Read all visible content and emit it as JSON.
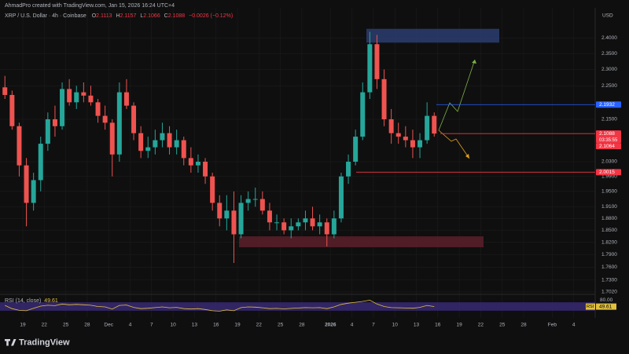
{
  "chart_data": {
    "type": "candlestick",
    "title": "AhmadPro created with TradingView.com, Jan 15, 2026 16:24 UTC+4",
    "symbol": "XRP / U.S. Dollar · 4h · Coinbase",
    "ohlc_labels": [
      "O",
      "H",
      "L",
      "C"
    ],
    "ohlc_values": [
      "2.1113",
      "2.1157",
      "2.1066",
      "2.1088"
    ],
    "change": "−0.0026 (−0.12%)",
    "currency": "USD",
    "brand": "TradingView",
    "log_scale": true,
    "up_color": "#26a69a",
    "down_color": "#ef5350",
    "ylim": [
      1.7,
      2.5
    ],
    "yticks": [
      {
        "value": 2.4,
        "label": "2.4000"
      },
      {
        "value": 2.35,
        "label": "2.3500"
      },
      {
        "value": 2.3,
        "label": "2.3000"
      },
      {
        "value": 2.25,
        "label": "2.2500"
      },
      {
        "value": 2.15,
        "label": "2.1500"
      },
      {
        "value": 2.03,
        "label": "2.0300"
      },
      {
        "value": 1.99,
        "label": "1.9900"
      },
      {
        "value": 1.95,
        "label": "1.9500"
      },
      {
        "value": 1.91,
        "label": "1.9100"
      },
      {
        "value": 1.88,
        "label": "1.8800"
      },
      {
        "value": 1.85,
        "label": "1.8500"
      },
      {
        "value": 1.82,
        "label": "1.8200"
      },
      {
        "value": 1.79,
        "label": "1.7900"
      },
      {
        "value": 1.76,
        "label": "1.7600"
      },
      {
        "value": 1.73,
        "label": "1.7300"
      },
      {
        "value": 1.702,
        "label": "1.7020"
      }
    ],
    "xticks": [
      "19",
      "22",
      "25",
      "28",
      "Dec",
      "4",
      "7",
      "10",
      "13",
      "16",
      "19",
      "22",
      "25",
      "28",
      "2026",
      "4",
      "7",
      "10",
      "13",
      "16",
      "19",
      "22",
      "25",
      "28",
      "Feb",
      "4"
    ],
    "open": [
      2.245,
      2.222,
      2.13,
      2.02,
      1.92,
      1.98,
      2.08,
      2.15,
      2.13,
      2.24,
      2.2,
      2.23,
      2.22,
      2.2,
      2.16,
      2.14,
      2.05,
      2.23,
      2.19,
      2.11,
      2.06,
      2.07,
      2.09,
      2.11,
      2.07,
      2.09,
      2.04,
      2.02,
      2.03,
      1.99,
      1.92,
      1.88,
      1.9,
      1.84,
      1.92,
      1.93,
      1.93,
      1.9,
      1.87,
      1.87,
      1.85,
      1.86,
      1.87,
      1.88,
      1.86,
      1.87,
      1.84,
      1.88,
      1.99,
      2.03,
      2.1,
      2.23,
      2.38,
      2.27,
      2.15,
      2.11,
      2.1,
      2.09,
      2.07,
      2.09,
      2.16
    ],
    "high": [
      2.28,
      2.235,
      2.14,
      2.04,
      2.0,
      2.1,
      2.17,
      2.19,
      2.26,
      2.27,
      2.25,
      2.26,
      2.25,
      2.21,
      2.19,
      2.15,
      2.26,
      2.27,
      2.2,
      2.13,
      2.1,
      2.12,
      2.14,
      2.13,
      2.12,
      2.1,
      2.07,
      2.05,
      2.04,
      2.0,
      1.94,
      1.94,
      1.95,
      1.94,
      1.95,
      1.96,
      1.95,
      1.92,
      1.89,
      1.88,
      1.88,
      1.88,
      1.9,
      1.91,
      1.89,
      1.88,
      1.9,
      2.0,
      2.05,
      2.12,
      2.26,
      2.42,
      2.41,
      2.3,
      2.18,
      2.14,
      2.13,
      2.12,
      2.11,
      2.2,
      2.17
    ],
    "low": [
      2.21,
      2.12,
      1.99,
      1.86,
      1.9,
      1.95,
      2.06,
      2.1,
      2.12,
      2.19,
      2.18,
      2.2,
      2.19,
      2.14,
      2.12,
      1.99,
      2.03,
      2.18,
      2.09,
      2.04,
      2.04,
      2.05,
      2.07,
      2.05,
      2.05,
      2.02,
      2.0,
      2.0,
      1.97,
      1.9,
      1.86,
      1.85,
      1.77,
      1.83,
      1.9,
      1.91,
      1.89,
      1.85,
      1.85,
      1.84,
      1.83,
      1.85,
      1.85,
      1.85,
      1.84,
      1.81,
      1.83,
      1.87,
      1.97,
      2.02,
      2.09,
      2.21,
      2.24,
      2.13,
      2.08,
      2.08,
      2.07,
      2.04,
      2.04,
      2.08,
      2.1
    ],
    "close": [
      2.222,
      2.13,
      2.02,
      1.92,
      1.98,
      2.08,
      2.15,
      2.13,
      2.24,
      2.2,
      2.23,
      2.22,
      2.2,
      2.16,
      2.14,
      2.05,
      2.23,
      2.19,
      2.11,
      2.06,
      2.07,
      2.09,
      2.11,
      2.07,
      2.09,
      2.04,
      2.02,
      2.03,
      1.99,
      1.92,
      1.88,
      1.9,
      1.84,
      1.92,
      1.93,
      1.93,
      1.9,
      1.87,
      1.87,
      1.85,
      1.86,
      1.87,
      1.88,
      1.86,
      1.87,
      1.84,
      1.88,
      1.99,
      2.03,
      2.1,
      2.23,
      2.38,
      2.27,
      2.15,
      2.11,
      2.1,
      2.09,
      2.07,
      2.09,
      2.16,
      2.1088
    ],
    "zones": [
      {
        "top": 2.43,
        "bottom": 2.385,
        "color": "#2a3d6e"
      },
      {
        "top": 1.835,
        "bottom": 1.808,
        "color": "#5c1f2a"
      }
    ],
    "price_lines": [
      {
        "value": 2.1932,
        "color": "#2962ff"
      },
      {
        "value": 2.1088,
        "color": "#f23645",
        "countdown": "03:35:55"
      },
      {
        "value": 2.1064,
        "color": "#f23645"
      },
      {
        "value": 2.0015,
        "color": "#f23645"
      }
    ],
    "rsi": {
      "label": "RSI (14, close)",
      "last": 49.61,
      "name": "RSI",
      "color": "#e0c040",
      "band": [
        30,
        70
      ],
      "band_color": "#3b2a78",
      "ylim": [
        0,
        100
      ],
      "yticks": [
        {
          "value": 80,
          "label": "80.00"
        }
      ],
      "values": [
        55,
        40,
        32,
        30,
        42,
        52,
        56,
        54,
        62,
        58,
        60,
        58,
        56,
        50,
        48,
        38,
        55,
        57,
        46,
        40,
        42,
        45,
        48,
        44,
        46,
        40,
        38,
        40,
        36,
        30,
        28,
        34,
        30,
        45,
        48,
        47,
        44,
        40,
        41,
        39,
        41,
        43,
        45,
        44,
        45,
        40,
        48,
        60,
        66,
        70,
        74,
        80,
        62,
        50,
        45,
        44,
        43,
        42,
        46,
        55,
        49.61
      ]
    }
  }
}
